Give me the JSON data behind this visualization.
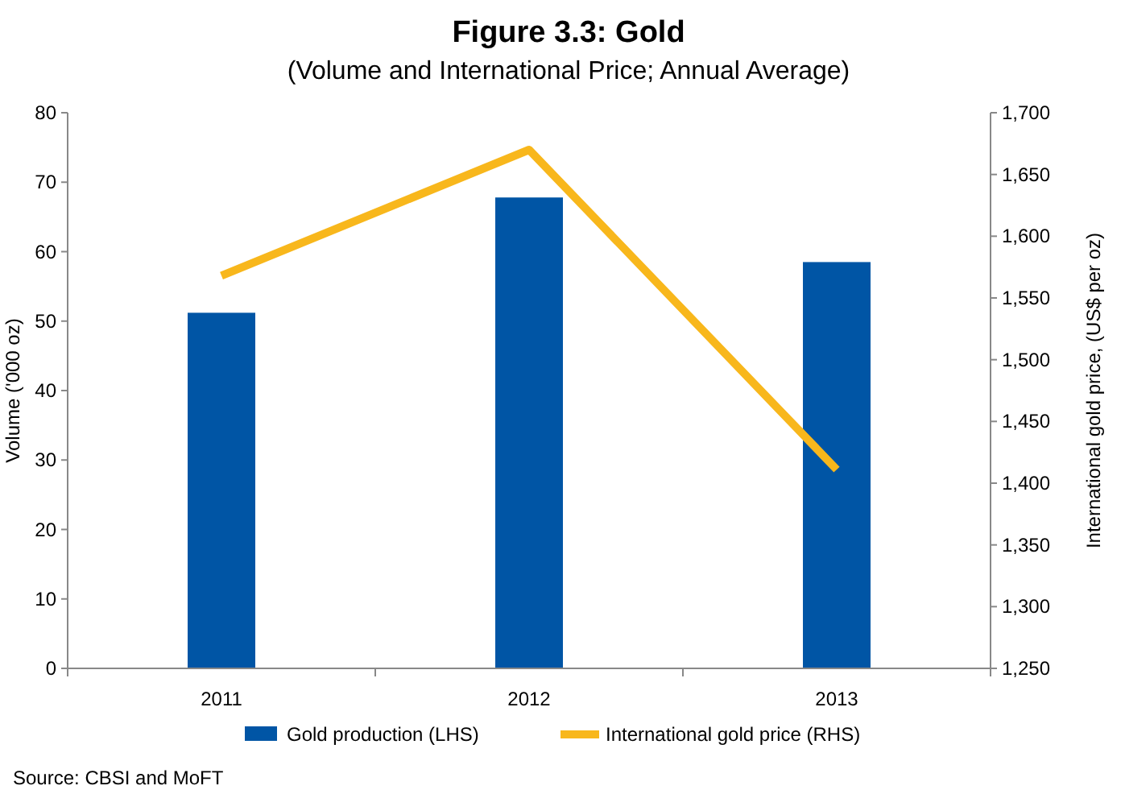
{
  "chart_data": {
    "type": "bar",
    "title": "Figure 3.3: Gold",
    "subtitle": "(Volume and International Price; Annual Average)",
    "ylabel": "Volume ('000 oz)",
    "y2label": "International gold price, (US$ per oz)",
    "categories": [
      "2011",
      "2012",
      "2013"
    ],
    "series": [
      {
        "name": "Gold production (LHS)",
        "color": "#0055a5",
        "values": [
          51.2,
          67.8,
          58.5
        ]
      },
      {
        "name": "International gold price (RHS)",
        "type": "line",
        "axis": "y2",
        "color": "#f8b71c",
        "values": [
          1568,
          1670,
          1411
        ]
      }
    ],
    "ylim": [
      0,
      80
    ],
    "yticks": [
      0,
      10,
      20,
      30,
      40,
      50,
      60,
      70,
      80
    ],
    "y2lim": [
      1250,
      1700
    ],
    "y2ticks": [
      {
        "value": 1250,
        "label": "1,250"
      },
      {
        "value": 1300,
        "label": "1,300"
      },
      {
        "value": 1350,
        "label": "1,350"
      },
      {
        "value": 1400,
        "label": "1,400"
      },
      {
        "value": 1450,
        "label": "1,450"
      },
      {
        "value": 1500,
        "label": "1,500"
      },
      {
        "value": 1550,
        "label": "1,550"
      },
      {
        "value": 1600,
        "label": "1,600"
      },
      {
        "value": 1650,
        "label": "1,650"
      },
      {
        "value": 1700,
        "label": "1,700"
      }
    ],
    "legend": "bottom",
    "annotations": [
      "Source: CBSI and MoFT"
    ]
  }
}
